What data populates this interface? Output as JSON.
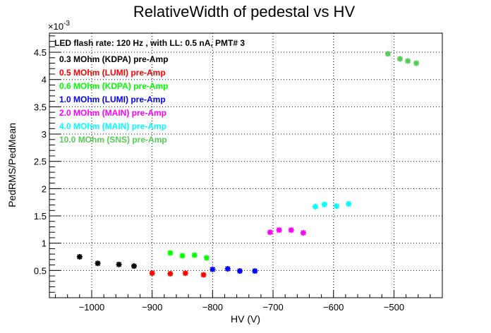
{
  "chart_data": {
    "type": "scatter",
    "title": "RelativeWidth of pedestal vs HV",
    "xlabel": "HV (V)",
    "ylabel": "PedRMS/PedMean",
    "y_exponent_label": "×10",
    "y_exponent_power": "-3",
    "xlim": [
      -1070,
      -420
    ],
    "ylim": [
      0.0,
      4.85
    ],
    "x_ticks": [
      {
        "value": -1000,
        "label": "−1000"
      },
      {
        "value": -900,
        "label": "−900"
      },
      {
        "value": -800,
        "label": "−800"
      },
      {
        "value": -700,
        "label": "−700"
      },
      {
        "value": -600,
        "label": "−600"
      },
      {
        "value": -500,
        "label": "−500"
      }
    ],
    "y_ticks": [
      {
        "value": 0.5,
        "label": "0.5"
      },
      {
        "value": 1.0,
        "label": "1"
      },
      {
        "value": 1.5,
        "label": "1.5"
      },
      {
        "value": 2.0,
        "label": "2"
      },
      {
        "value": 2.5,
        "label": "2.5"
      },
      {
        "value": 3.0,
        "label": "3"
      },
      {
        "value": 3.5,
        "label": "3.5"
      },
      {
        "value": 4.0,
        "label": "4"
      },
      {
        "value": 4.5,
        "label": "4.5"
      }
    ],
    "grid": true,
    "legend_header": "LED flash rate: 120 Hz , with LL: 0.5 nA, PMT# 3",
    "legend_position": "top-left",
    "series": [
      {
        "name": "0.3 MOhm (KDPA) pre-Amp",
        "color": "#000000",
        "points": [
          [
            -1020,
            0.75
          ],
          [
            -990,
            0.63
          ],
          [
            -955,
            0.61
          ],
          [
            -930,
            0.58
          ]
        ]
      },
      {
        "name": " 0.5 MOhm (LUMI) pre-Amp",
        "color": "#ff0000",
        "points": [
          [
            -900,
            0.45
          ],
          [
            -870,
            0.44
          ],
          [
            -845,
            0.45
          ],
          [
            -815,
            0.42
          ]
        ]
      },
      {
        "name": "0.6 MOhm (KDPA) pre-Amp",
        "color": "#00ff00",
        "points": [
          [
            -870,
            0.82
          ],
          [
            -850,
            0.77
          ],
          [
            -830,
            0.78
          ],
          [
            -810,
            0.73
          ]
        ]
      },
      {
        "name": "1.0 MOhm (LUMI) pre-Amp",
        "color": "#0000ff",
        "points": [
          [
            -800,
            0.52
          ],
          [
            -775,
            0.53
          ],
          [
            -755,
            0.49
          ],
          [
            -730,
            0.49
          ]
        ]
      },
      {
        "name": "2.0 MOhm (MAIN) pre-Amp",
        "color": "#ff00ff",
        "points": [
          [
            -705,
            1.2
          ],
          [
            -690,
            1.24
          ],
          [
            -670,
            1.24
          ],
          [
            -650,
            1.19
          ]
        ]
      },
      {
        "name": "4.0 MOhm (MAIN) pre-Amp",
        "color": "#00ffff",
        "points": [
          [
            -630,
            1.67
          ],
          [
            -615,
            1.71
          ],
          [
            -595,
            1.68
          ],
          [
            -575,
            1.72
          ]
        ]
      },
      {
        "name": "10.0 MOhm (SNS) pre-Amp",
        "color": "#55cc55",
        "points": [
          [
            -510,
            4.47
          ],
          [
            -490,
            4.38
          ],
          [
            -477,
            4.34
          ],
          [
            -463,
            4.3
          ]
        ]
      }
    ]
  }
}
